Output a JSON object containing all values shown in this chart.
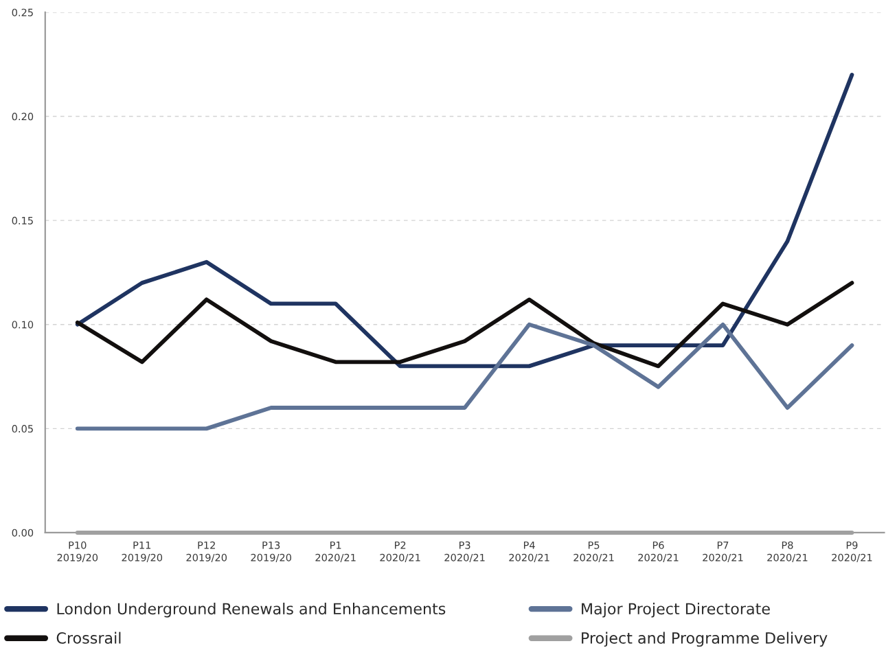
{
  "chart_data": {
    "type": "line",
    "categories": [
      "P10\n2019/20",
      "P11\n2019/20",
      "P12\n2019/20",
      "P13\n2019/20",
      "P1\n2020/21",
      "P2\n2020/21",
      "P3\n2020/21",
      "P4\n2020/21",
      "P5\n2020/21",
      "P6\n2020/21",
      "P7\n2020/21",
      "P8\n2020/21",
      "P9\n2020/21"
    ],
    "series": [
      {
        "name": "London Underground Renewals and Enhancements",
        "color": "#1f3461",
        "values": [
          0.1,
          0.12,
          0.13,
          0.11,
          0.11,
          0.08,
          0.08,
          0.08,
          0.09,
          0.09,
          0.09,
          0.14,
          0.22
        ]
      },
      {
        "name": "Crossrail",
        "color": "#120f0e",
        "values": [
          0.101,
          0.082,
          0.112,
          0.092,
          0.082,
          0.082,
          0.092,
          0.112,
          0.091,
          0.08,
          0.11,
          0.1,
          0.12
        ]
      },
      {
        "name": "Major Project Directorate",
        "color": "#5e7396",
        "values": [
          0.05,
          0.05,
          0.05,
          0.06,
          0.06,
          0.06,
          0.06,
          0.1,
          0.09,
          0.07,
          0.1,
          0.06,
          0.09
        ]
      },
      {
        "name": "Project and Programme Delivery",
        "color": "#a0a0a0",
        "values": [
          0,
          0,
          0,
          0,
          0,
          0,
          0,
          0,
          0,
          0,
          0,
          0,
          0
        ]
      }
    ],
    "ylim": [
      0,
      0.25
    ],
    "yticks": [
      {
        "value": 0,
        "label": "0.00"
      },
      0.05,
      {
        "value": 0.1,
        "label": "0.10"
      },
      0.15,
      {
        "value": 0.2,
        "label": "0.20"
      },
      0.25
    ],
    "grid": "y",
    "legend": "bottom",
    "line_style": "solid",
    "marker": "none"
  }
}
